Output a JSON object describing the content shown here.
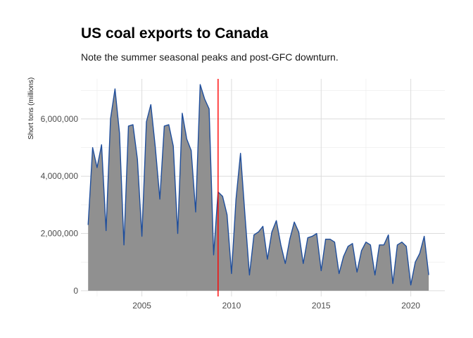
{
  "chart_data": {
    "type": "area",
    "title": "US coal exports to Canada",
    "subtitle": "Note the summer seasonal peaks and post-GFC downturn.",
    "xlabel": "",
    "ylabel": "Short tons (millions)",
    "xlim": [
      2001.6,
      2021.9
    ],
    "ylim": [
      -200000,
      7400000
    ],
    "x_ticks": [
      2005,
      2010,
      2015,
      2020
    ],
    "y_ticks": [
      0,
      2000000,
      4000000,
      6000000
    ],
    "y_tick_labels": [
      "0",
      "2,000,000",
      "4,000,000",
      "6,000,000"
    ],
    "grid": true,
    "legend": "none",
    "vline": {
      "x": 2009.25,
      "color": "#ff0000"
    },
    "area_color": "#909090",
    "line_color": "#1f4e9c",
    "series": [
      {
        "x": [
          2002.0,
          2002.25,
          2002.5,
          2002.75,
          2003.0,
          2003.25,
          2003.5,
          2003.75,
          2004.0,
          2004.25,
          2004.5,
          2004.75,
          2005.0,
          2005.25,
          2005.5,
          2005.75,
          2006.0,
          2006.25,
          2006.5,
          2006.75,
          2007.0,
          2007.25,
          2007.5,
          2007.75,
          2008.0,
          2008.25,
          2008.5,
          2008.75,
          2009.0,
          2009.25,
          2009.5,
          2009.75,
          2010.0,
          2010.25,
          2010.5,
          2010.75,
          2011.0,
          2011.25,
          2011.5,
          2011.75,
          2012.0,
          2012.25,
          2012.5,
          2012.75,
          2013.0,
          2013.25,
          2013.5,
          2013.75,
          2014.0,
          2014.25,
          2014.5,
          2014.75,
          2015.0,
          2015.25,
          2015.5,
          2015.75,
          2016.0,
          2016.25,
          2016.5,
          2016.75,
          2017.0,
          2017.25,
          2017.5,
          2017.75,
          2018.0,
          2018.25,
          2018.5,
          2018.75,
          2019.0,
          2019.25,
          2019.5,
          2019.75,
          2020.0,
          2020.25,
          2020.5,
          2020.75,
          2021.0
        ],
        "values": [
          2300000,
          5000000,
          4300000,
          5100000,
          2100000,
          6000000,
          7050000,
          5500000,
          1600000,
          5750000,
          5800000,
          4600000,
          1900000,
          5900000,
          6500000,
          5000000,
          3200000,
          5750000,
          5800000,
          5050000,
          2000000,
          6200000,
          5300000,
          4900000,
          2750000,
          7200000,
          6700000,
          6350000,
          1250000,
          3450000,
          3300000,
          2650000,
          600000,
          3200000,
          4800000,
          2650000,
          550000,
          1950000,
          2050000,
          2250000,
          1100000,
          2050000,
          2450000,
          1600000,
          950000,
          1800000,
          2400000,
          2050000,
          950000,
          1850000,
          1900000,
          2000000,
          700000,
          1800000,
          1800000,
          1700000,
          600000,
          1200000,
          1550000,
          1650000,
          650000,
          1400000,
          1700000,
          1600000,
          550000,
          1600000,
          1600000,
          1950000,
          250000,
          1600000,
          1700000,
          1550000,
          200000,
          1000000,
          1300000,
          1900000,
          550000
        ]
      }
    ]
  }
}
